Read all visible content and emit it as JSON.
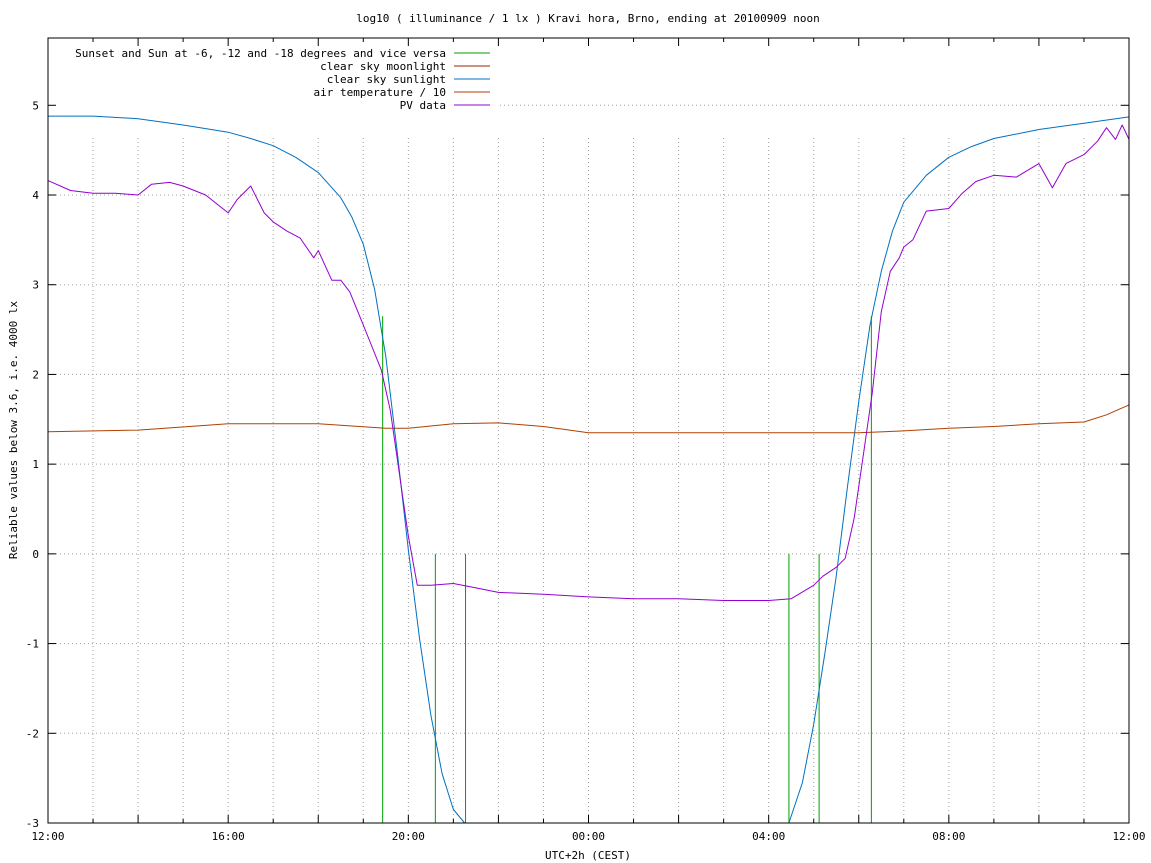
{
  "chart_data": {
    "type": "line",
    "title": "log10 ( illuminance / 1 lx ) Kravi hora, Brno, ending at 20100909 noon",
    "xlabel": "UTC+2h (CEST)",
    "ylabel": "Reliable values below 3.6, i.e. 4000 lx",
    "xlim_hours": [
      12,
      36
    ],
    "ylim": [
      -3,
      5.75
    ],
    "grid": true,
    "legend_position": "top-left",
    "x_ticks": [
      {
        "h": 12,
        "label": "12:00"
      },
      {
        "h": 16,
        "label": "16:00"
      },
      {
        "h": 20,
        "label": "20:00"
      },
      {
        "h": 24,
        "label": "00:00"
      },
      {
        "h": 28,
        "label": "04:00"
      },
      {
        "h": 32,
        "label": "08:00"
      },
      {
        "h": 36,
        "label": "12:00"
      }
    ],
    "y_ticks": [
      {
        "v": 5,
        "label": "5"
      },
      {
        "v": 4,
        "label": "4"
      },
      {
        "v": 3,
        "label": "3"
      },
      {
        "v": 2,
        "label": "2"
      },
      {
        "v": 1,
        "label": "1"
      },
      {
        "v": 0,
        "label": "0"
      },
      {
        "v": -1,
        "label": "-1"
      },
      {
        "v": -2,
        "label": "-2"
      },
      {
        "v": -3,
        "label": "-3"
      }
    ],
    "series": [
      {
        "name": "Sunset and Sun at -6, -12 and -18 degrees and vice versa",
        "color": "#00a000",
        "impulses": [
          {
            "x": 19.43,
            "y": 2.65
          },
          {
            "x": 20.6,
            "y": 0
          },
          {
            "x": 21.27,
            "y": 0
          },
          {
            "x": 28.45,
            "y": 0
          },
          {
            "x": 29.12,
            "y": 0
          },
          {
            "x": 30.28,
            "y": 2.65
          }
        ]
      },
      {
        "name": "clear sky moonlight",
        "color": "#a02000",
        "x": [],
        "y": []
      },
      {
        "name": "clear sky sunlight",
        "color": "#0070c0",
        "x": [
          12,
          13,
          14,
          15,
          16,
          16.5,
          17,
          17.5,
          18,
          18.5,
          18.75,
          19,
          19.25,
          19.5,
          19.75,
          20,
          20.25,
          20.5,
          20.75,
          21,
          21.25,
          28.45,
          28.75,
          29,
          29.25,
          29.5,
          29.75,
          30,
          30.25,
          30.5,
          30.75,
          31,
          31.5,
          32,
          32.5,
          33,
          34,
          35,
          36
        ],
        "y": [
          4.88,
          4.88,
          4.85,
          4.78,
          4.7,
          4.63,
          4.55,
          4.42,
          4.25,
          3.97,
          3.75,
          3.45,
          2.95,
          2.2,
          1.15,
          0.05,
          -0.95,
          -1.8,
          -2.45,
          -2.85,
          -3.0,
          -3.0,
          -2.55,
          -1.9,
          -1.1,
          -0.25,
          0.75,
          1.7,
          2.55,
          3.15,
          3.6,
          3.92,
          4.22,
          4.42,
          4.54,
          4.63,
          4.73,
          4.8,
          4.87
        ]
      },
      {
        "name": "air temperature / 10",
        "color": "#b04000",
        "x": [
          12,
          14,
          16,
          18,
          19.5,
          20,
          21,
          22,
          23,
          24,
          26,
          28,
          30,
          31,
          32,
          33,
          34,
          35,
          35.5,
          36
        ],
        "y": [
          1.36,
          1.38,
          1.45,
          1.45,
          1.4,
          1.4,
          1.45,
          1.46,
          1.42,
          1.35,
          1.35,
          1.35,
          1.35,
          1.37,
          1.4,
          1.42,
          1.45,
          1.47,
          1.55,
          1.66
        ]
      },
      {
        "name": "PV data",
        "color": "#9400d3",
        "x": [
          12,
          12.5,
          13,
          13.5,
          14,
          14.3,
          14.7,
          15,
          15.5,
          16,
          16.2,
          16.5,
          16.8,
          17,
          17.3,
          17.6,
          17.9,
          18,
          18.3,
          18.5,
          18.7,
          19,
          19.2,
          19.4,
          19.6,
          19.8,
          20,
          20.2,
          20.5,
          21,
          21.5,
          22,
          23,
          24,
          25,
          26,
          27,
          28,
          28.5,
          29,
          29.2,
          29.5,
          29.7,
          29.9,
          30.1,
          30.3,
          30.5,
          30.7,
          30.9,
          31,
          31.2,
          31.5,
          32,
          32.3,
          32.6,
          33,
          33.5,
          34,
          34.3,
          34.6,
          35,
          35.3,
          35.5,
          35.7,
          35.85,
          36
        ],
        "y": [
          4.16,
          4.05,
          4.02,
          4.02,
          4.0,
          4.12,
          4.14,
          4.1,
          4.0,
          3.8,
          3.95,
          4.1,
          3.8,
          3.7,
          3.6,
          3.52,
          3.3,
          3.38,
          3.05,
          3.05,
          2.92,
          2.55,
          2.3,
          2.05,
          1.6,
          0.9,
          0.2,
          -0.35,
          -0.35,
          -0.33,
          -0.38,
          -0.43,
          -0.45,
          -0.48,
          -0.5,
          -0.5,
          -0.52,
          -0.52,
          -0.5,
          -0.35,
          -0.25,
          -0.15,
          -0.05,
          0.4,
          1.1,
          1.8,
          2.7,
          3.15,
          3.3,
          3.42,
          3.5,
          3.82,
          3.85,
          4.02,
          4.15,
          4.22,
          4.2,
          4.35,
          4.08,
          4.35,
          4.45,
          4.6,
          4.75,
          4.62,
          4.78,
          4.62
        ]
      }
    ]
  }
}
